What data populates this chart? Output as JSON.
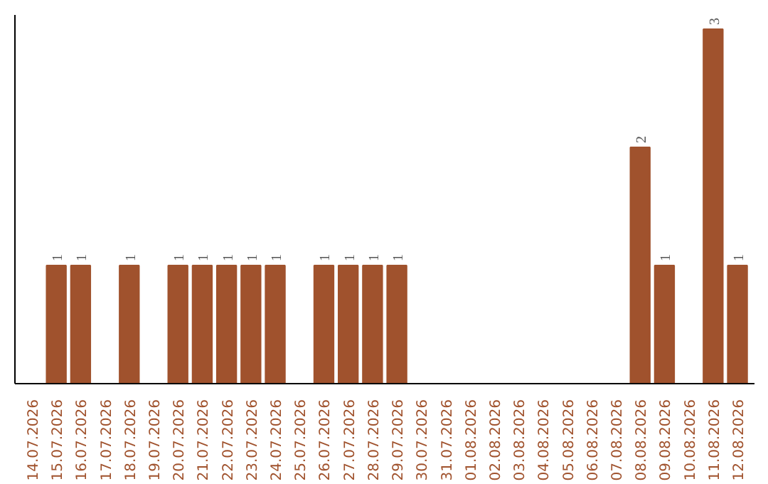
{
  "chart_data": {
    "type": "bar",
    "categories": [
      "14.07.2026",
      "15.07.2026",
      "16.07.2026",
      "17.07.2026",
      "18.07.2026",
      "19.07.2026",
      "20.07.2026",
      "21.07.2026",
      "22.07.2026",
      "23.07.2026",
      "24.07.2026",
      "25.07.2026",
      "26.07.2026",
      "27.07.2026",
      "28.07.2026",
      "29.07.2026",
      "30.07.2026",
      "31.07.2026",
      "01.08.2026",
      "02.08.2026",
      "03.08.2026",
      "04.08.2026",
      "05.08.2026",
      "06.08.2026",
      "07.08.2026",
      "08.08.2026",
      "09.08.2026",
      "10.08.2026",
      "11.08.2026",
      "12.08.2026"
    ],
    "values": [
      null,
      1,
      1,
      null,
      1,
      null,
      1,
      1,
      1,
      1,
      1,
      null,
      1,
      1,
      1,
      1,
      null,
      null,
      null,
      null,
      null,
      null,
      null,
      null,
      null,
      2,
      1,
      null,
      3,
      1
    ],
    "color": "#a0522d",
    "data_labels": true,
    "tick_labels": "x"
  }
}
